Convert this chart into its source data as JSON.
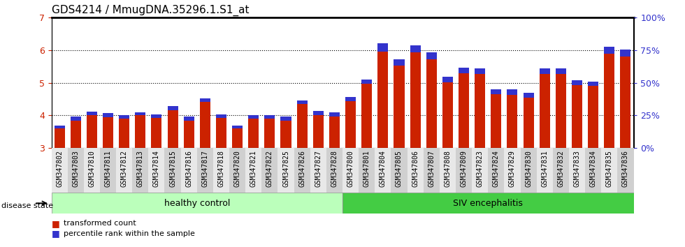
{
  "title": "GDS4214 / MmugDNA.35296.1.S1_at",
  "samples": [
    "GSM347802",
    "GSM347803",
    "GSM347810",
    "GSM347811",
    "GSM347812",
    "GSM347813",
    "GSM347814",
    "GSM347815",
    "GSM347816",
    "GSM347817",
    "GSM347818",
    "GSM347820",
    "GSM347821",
    "GSM347822",
    "GSM347825",
    "GSM347826",
    "GSM347827",
    "GSM347828",
    "GSM347800",
    "GSM347801",
    "GSM347804",
    "GSM347805",
    "GSM347806",
    "GSM347807",
    "GSM347808",
    "GSM347809",
    "GSM347823",
    "GSM347824",
    "GSM347829",
    "GSM347830",
    "GSM347831",
    "GSM347832",
    "GSM347833",
    "GSM347834",
    "GSM347835",
    "GSM347836"
  ],
  "red_values": [
    3.6,
    3.85,
    4.02,
    3.95,
    3.9,
    4.0,
    3.92,
    4.15,
    3.85,
    4.42,
    3.92,
    3.6,
    3.9,
    3.9,
    3.85,
    4.35,
    4.01,
    3.97,
    4.43,
    4.96,
    5.95,
    5.52,
    5.92,
    5.72,
    5.02,
    5.28,
    5.26,
    4.66,
    4.63,
    4.55,
    5.26,
    5.26,
    4.92,
    4.9,
    5.88,
    5.8
  ],
  "blue_values": [
    0.1,
    0.12,
    0.1,
    0.12,
    0.12,
    0.1,
    0.12,
    0.13,
    0.12,
    0.1,
    0.12,
    0.1,
    0.12,
    0.1,
    0.11,
    0.11,
    0.12,
    0.12,
    0.13,
    0.14,
    0.25,
    0.2,
    0.22,
    0.2,
    0.17,
    0.19,
    0.17,
    0.15,
    0.16,
    0.14,
    0.17,
    0.18,
    0.15,
    0.14,
    0.22,
    0.22
  ],
  "baseline": 3.0,
  "ylim_left": [
    3.0,
    7.0
  ],
  "ylim_right": [
    0,
    100
  ],
  "left_ticks": [
    3,
    4,
    5,
    6,
    7
  ],
  "right_ticks": [
    0,
    25,
    50,
    75,
    100
  ],
  "right_tick_labels": [
    "0%",
    "25%",
    "50%",
    "75%",
    "100%"
  ],
  "healthy_count": 18,
  "bar_color_red": "#CC2200",
  "bar_color_blue": "#3333CC",
  "healthy_color": "#BBFFBB",
  "siv_color": "#44CC44",
  "healthy_label": "healthy control",
  "siv_label": "SIV encephalitis",
  "disease_state_label": "disease state",
  "legend_red": "transformed count",
  "legend_blue": "percentile rank within the sample",
  "grid_color": "black",
  "title_fontsize": 11,
  "tick_label_fontsize": 7,
  "ylabel_color_left": "#CC2200",
  "ylabel_color_right": "#3333CC",
  "tick_bg_even": "#E8E8E8",
  "tick_bg_odd": "#D0D0D0"
}
